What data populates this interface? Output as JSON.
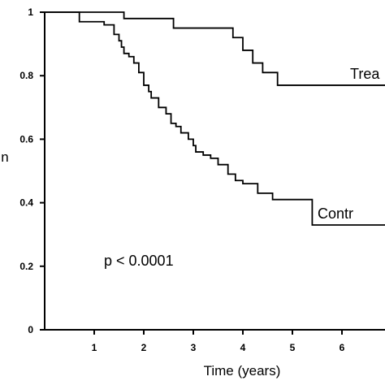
{
  "chart_data": {
    "type": "line",
    "step": true,
    "xlabel": "Time (years)",
    "ylabel": "n",
    "xlim": [
      0,
      7
    ],
    "ylim": [
      0,
      1
    ],
    "xticks": [
      1,
      2,
      3,
      4,
      5,
      6
    ],
    "yticks": [
      0,
      0.2,
      0.4,
      0.6,
      0.8,
      1
    ],
    "ytick_labels": [
      "0",
      "0.2",
      "0.4",
      "0.6",
      "0.8",
      "1"
    ],
    "annotation": "p < 0.0001",
    "grid": false,
    "series": [
      {
        "name": "Trea",
        "x": [
          0,
          1.6,
          2.6,
          3.8,
          4.0,
          4.2,
          4.4,
          4.7,
          7.0
        ],
        "y": [
          1.0,
          0.98,
          0.95,
          0.92,
          0.88,
          0.84,
          0.81,
          0.77,
          0.77
        ]
      },
      {
        "name": "Contr",
        "x": [
          0,
          0.7,
          1.2,
          1.4,
          1.5,
          1.55,
          1.6,
          1.7,
          1.8,
          1.9,
          2.0,
          2.1,
          2.15,
          2.3,
          2.45,
          2.55,
          2.65,
          2.75,
          2.9,
          3.0,
          3.05,
          3.2,
          3.35,
          3.5,
          3.7,
          3.85,
          4.0,
          4.3,
          4.6,
          5.4,
          7.0
        ],
        "y": [
          1.0,
          0.97,
          0.96,
          0.93,
          0.91,
          0.89,
          0.87,
          0.86,
          0.84,
          0.81,
          0.77,
          0.75,
          0.73,
          0.7,
          0.68,
          0.65,
          0.64,
          0.62,
          0.6,
          0.58,
          0.56,
          0.55,
          0.54,
          0.52,
          0.49,
          0.47,
          0.46,
          0.43,
          0.41,
          0.33,
          0.33
        ]
      }
    ]
  }
}
